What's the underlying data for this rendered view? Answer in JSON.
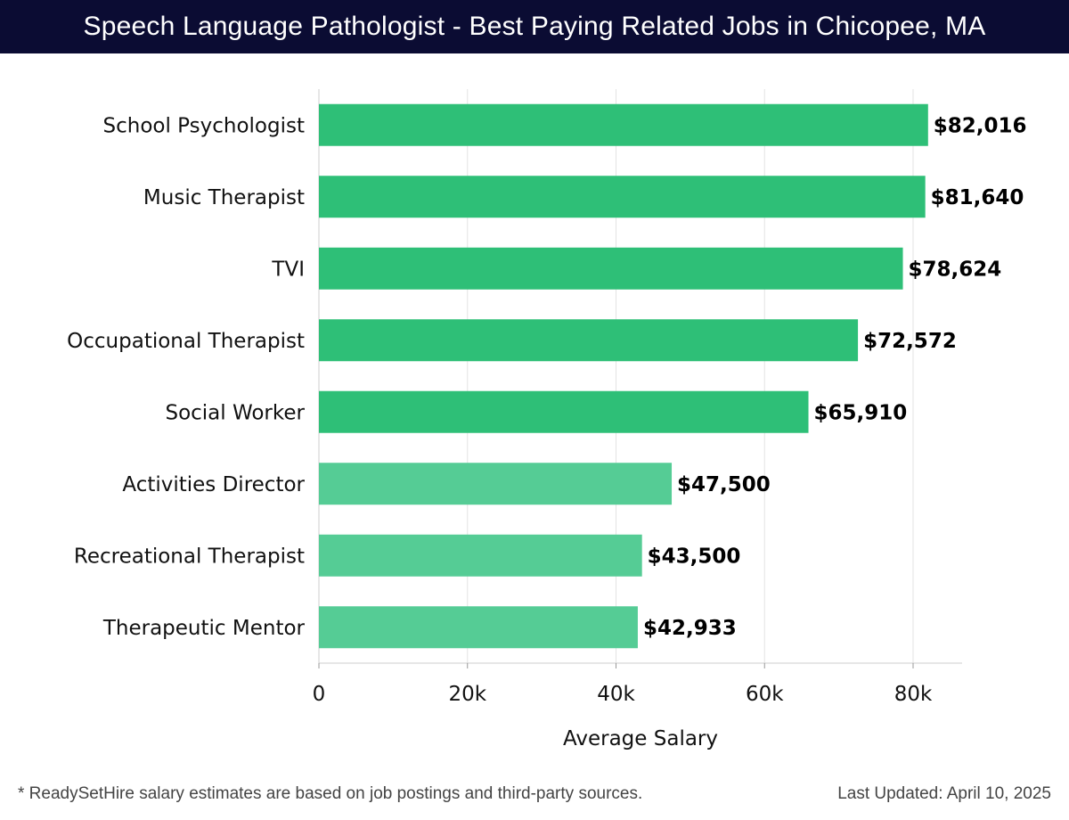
{
  "header": {
    "title": "Speech Language Pathologist - Best Paying Related Jobs in Chicopee, MA"
  },
  "footer": {
    "note": "* ReadySetHire salary estimates are based on job postings and third-party sources.",
    "updated": "Last Updated: April 10, 2025"
  },
  "colors": {
    "header_bg": "#0b0c33",
    "bar_dark": "#2ebf77",
    "bar_light": "#55cc95"
  },
  "chart_data": {
    "type": "bar",
    "orientation": "horizontal",
    "title": "Speech Language Pathologist - Best Paying Related Jobs in Chicopee, MA",
    "xlabel": "Average Salary",
    "ylabel": "",
    "xlim": [
      0,
      86000
    ],
    "xticks": [
      0,
      20000,
      40000,
      60000,
      80000
    ],
    "xtick_labels": [
      "0",
      "20k",
      "40k",
      "60k",
      "80k"
    ],
    "grid": "vertical",
    "categories": [
      "School Psychologist",
      "Music Therapist",
      "TVI",
      "Occupational Therapist",
      "Social Worker",
      "Activities Director",
      "Recreational Therapist",
      "Therapeutic Mentor"
    ],
    "values": [
      82016,
      81640,
      78624,
      72572,
      65910,
      47500,
      43500,
      42933
    ],
    "value_labels": [
      "$82,016",
      "$81,640",
      "$78,624",
      "$72,572",
      "$65,910",
      "$47,500",
      "$43,500",
      "$42,933"
    ]
  }
}
